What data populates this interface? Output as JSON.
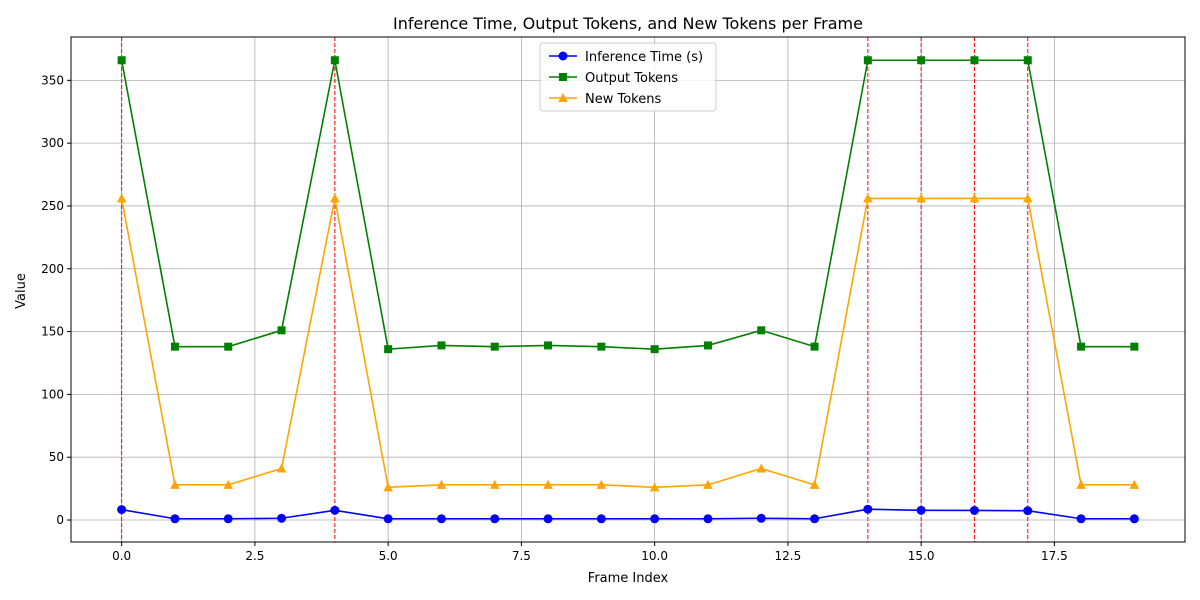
{
  "chart_data": {
    "type": "line",
    "title": "Inference Time, Output Tokens, and New Tokens per Frame",
    "xlabel": "Frame Index",
    "ylabel": "Value",
    "xlim": [
      -0.95,
      19.95
    ],
    "ylim": [
      -17.5,
      384.5
    ],
    "x_ticks": [
      0.0,
      2.5,
      5.0,
      7.5,
      10.0,
      12.5,
      15.0,
      17.5
    ],
    "x_tick_labels": [
      "0.0",
      "2.5",
      "5.0",
      "7.5",
      "10.0",
      "12.5",
      "15.0",
      "17.5"
    ],
    "y_ticks": [
      0,
      50,
      100,
      150,
      200,
      250,
      300,
      350
    ],
    "y_tick_labels": [
      "0",
      "50",
      "100",
      "150",
      "200",
      "250",
      "300",
      "350"
    ],
    "grid": true,
    "legend_position": "top-center",
    "x": [
      0,
      1,
      2,
      3,
      4,
      5,
      6,
      7,
      8,
      9,
      10,
      11,
      12,
      13,
      14,
      15,
      16,
      17,
      18,
      19
    ],
    "series": [
      {
        "name": "Inference Time (s)",
        "color": "#0000ff",
        "marker": "circle",
        "values": [
          8.3,
          1.0,
          1.0,
          1.4,
          7.7,
          1.0,
          1.0,
          1.0,
          1.0,
          1.0,
          1.0,
          1.0,
          1.4,
          1.0,
          8.6,
          7.7,
          7.6,
          7.4,
          1.0,
          1.0
        ]
      },
      {
        "name": "Output Tokens",
        "color": "#008000",
        "marker": "square",
        "values": [
          366,
          138,
          138,
          151,
          366,
          136,
          139,
          138,
          139,
          138,
          136,
          139,
          151,
          138,
          366,
          366,
          366,
          366,
          138,
          138
        ]
      },
      {
        "name": "New Tokens",
        "color": "#ffa500",
        "marker": "triangle",
        "values": [
          256,
          28,
          28,
          41,
          256,
          26,
          28,
          28,
          28,
          28,
          26,
          28,
          41,
          28,
          256,
          256,
          256,
          256,
          28,
          28
        ]
      }
    ],
    "vertical_markers": {
      "color": "#ff0000",
      "style": "dashed",
      "x": [
        0,
        4,
        14,
        15,
        16,
        17
      ]
    }
  }
}
